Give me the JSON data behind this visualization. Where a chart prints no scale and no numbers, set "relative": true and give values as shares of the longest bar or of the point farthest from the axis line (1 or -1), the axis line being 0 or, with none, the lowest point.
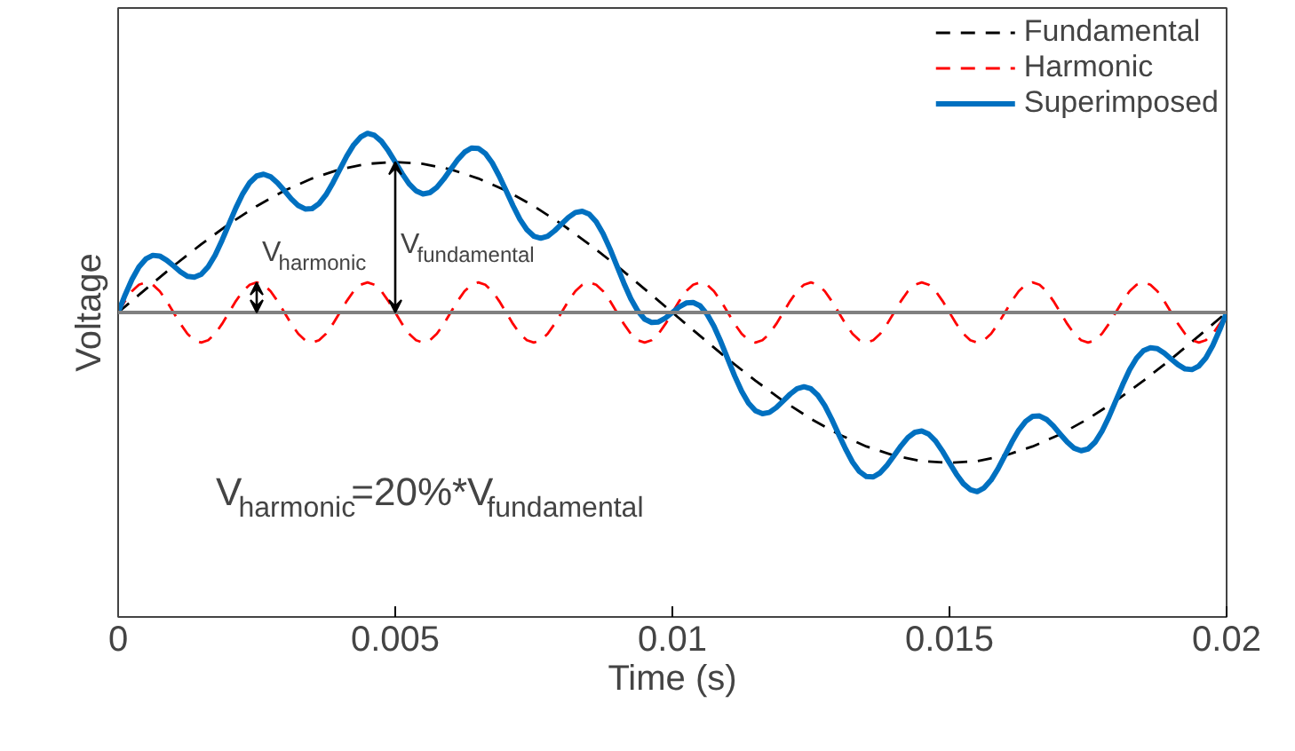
{
  "chart_data": {
    "type": "line",
    "relative": true,
    "xlabel": "Time (s)",
    "ylabel": "Voltage",
    "xlim": [
      0,
      0.02
    ],
    "xticks": [
      0,
      0.005,
      0.01,
      0.015,
      0.02
    ],
    "grid": false,
    "legend": "top right",
    "x": [
      0,
      0.000125,
      0.00025,
      0.000375,
      0.0005,
      0.000625,
      0.00075,
      0.000875,
      0.001,
      0.001125,
      0.00125,
      0.001375,
      0.0015,
      0.001625,
      0.00175,
      0.001875,
      0.002,
      0.002125,
      0.00225,
      0.002375,
      0.0025,
      0.002625,
      0.00275,
      0.002875,
      0.003,
      0.003125,
      0.00325,
      0.003375,
      0.0035,
      0.003625,
      0.00375,
      0.003875,
      0.004,
      0.004125,
      0.00425,
      0.004375,
      0.0045,
      0.004625,
      0.00475,
      0.004875,
      0.005,
      0.005125,
      0.00525,
      0.005375,
      0.0055,
      0.005625,
      0.00575,
      0.005875,
      0.006,
      0.006125,
      0.00625,
      0.006375,
      0.0065,
      0.006625,
      0.00675,
      0.006875,
      0.007,
      0.007125,
      0.00725,
      0.007375,
      0.0075,
      0.007625,
      0.00775,
      0.007875,
      0.008,
      0.008125,
      0.00825,
      0.008375,
      0.0085,
      0.008625,
      0.00875,
      0.008875,
      0.009,
      0.009125,
      0.00925,
      0.009375,
      0.0095,
      0.009625,
      0.00975,
      0.009875,
      0.01,
      0.010125,
      0.01025,
      0.010375,
      0.0105,
      0.010625,
      0.01075,
      0.010875,
      0.011,
      0.011125,
      0.01125,
      0.011375,
      0.0115,
      0.011625,
      0.01175,
      0.011875,
      0.012,
      0.012125,
      0.01225,
      0.012375,
      0.0125,
      0.012625,
      0.01275,
      0.012875,
      0.013,
      0.013125,
      0.01325,
      0.013375,
      0.0135,
      0.013625,
      0.01375,
      0.013875,
      0.014,
      0.014125,
      0.01425,
      0.014375,
      0.0145,
      0.014625,
      0.01475,
      0.014875,
      0.015,
      0.015125,
      0.01525,
      0.015375,
      0.0155,
      0.015625,
      0.01575,
      0.015875,
      0.016,
      0.016125,
      0.01625,
      0.016375,
      0.0165,
      0.016625,
      0.01675,
      0.016875,
      0.017,
      0.017125,
      0.01725,
      0.017375,
      0.0175,
      0.017625,
      0.01775,
      0.017875,
      0.018,
      0.018125,
      0.01825,
      0.018375,
      0.0185,
      0.018625,
      0.01875,
      0.018875,
      0.019,
      0.019125,
      0.01925,
      0.019375,
      0.0195,
      0.019625,
      0.01975,
      0.019875,
      0.02
    ],
    "series": [
      {
        "name": "Fundamental",
        "color": "#000000",
        "line_style": "dashed",
        "x": [
          0,
          0.0005,
          0.001,
          0.0015,
          0.002,
          0.0025,
          0.003,
          0.0035,
          0.004,
          0.0045,
          0.005,
          0.0055,
          0.006,
          0.0065,
          0.007,
          0.0075,
          0.008,
          0.0085,
          0.009,
          0.0095,
          0.01,
          0.0105,
          0.011,
          0.0115,
          0.012,
          0.0125,
          0.013,
          0.0135,
          0.014,
          0.0145,
          0.015,
          0.0155,
          0.016,
          0.0165,
          0.017,
          0.0175,
          0.018,
          0.0185,
          0.019,
          0.0195,
          0.02
        ],
        "values": [
          0,
          0.131,
          0.26,
          0.381,
          0.494,
          0.594,
          0.68,
          0.748,
          0.799,
          0.83,
          0.84,
          0.83,
          0.799,
          0.748,
          0.68,
          0.594,
          0.494,
          0.381,
          0.26,
          0.131,
          0,
          -0.131,
          -0.26,
          -0.381,
          -0.494,
          -0.594,
          -0.68,
          -0.748,
          -0.799,
          -0.83,
          -0.84,
          -0.83,
          -0.799,
          -0.748,
          -0.68,
          -0.594,
          -0.494,
          -0.381,
          -0.26,
          -0.131,
          0
        ]
      },
      {
        "name": "Harmonic",
        "color": "#ff0000",
        "line_style": "dashed",
        "values": [
          0,
          0.064,
          0.119,
          0.155,
          0.168,
          0.155,
          0.119,
          0.064,
          0,
          -0.064,
          -0.119,
          -0.155,
          -0.168,
          -0.155,
          -0.119,
          -0.064,
          0,
          0.064,
          0.119,
          0.155,
          0.168,
          0.155,
          0.119,
          0.064,
          0,
          -0.064,
          -0.119,
          -0.155,
          -0.168,
          -0.155,
          -0.119,
          -0.064,
          0,
          0.064,
          0.119,
          0.155,
          0.168,
          0.155,
          0.119,
          0.064,
          0,
          -0.064,
          -0.119,
          -0.155,
          -0.168,
          -0.155,
          -0.119,
          -0.064,
          0,
          0.064,
          0.119,
          0.155,
          0.168,
          0.155,
          0.119,
          0.064,
          0,
          -0.064,
          -0.119,
          -0.155,
          -0.168,
          -0.155,
          -0.119,
          -0.064,
          0,
          0.064,
          0.119,
          0.155,
          0.168,
          0.155,
          0.119,
          0.064,
          0,
          -0.064,
          -0.119,
          -0.155,
          -0.168,
          -0.155,
          -0.119,
          -0.064,
          0,
          0.064,
          0.119,
          0.155,
          0.168,
          0.155,
          0.119,
          0.064,
          0,
          -0.064,
          -0.119,
          -0.155,
          -0.168,
          -0.155,
          -0.119,
          -0.064,
          0,
          0.064,
          0.119,
          0.155,
          0.168,
          0.155,
          0.119,
          0.064,
          0,
          -0.064,
          -0.119,
          -0.155,
          -0.168,
          -0.155,
          -0.119,
          -0.064,
          0,
          0.064,
          0.119,
          0.155,
          0.168,
          0.155,
          0.119,
          0.064,
          0,
          -0.064,
          -0.119,
          -0.155,
          -0.168,
          -0.155,
          -0.119,
          -0.064,
          0,
          0.064,
          0.119,
          0.155,
          0.168,
          0.155,
          0.119,
          0.064,
          0,
          -0.064,
          -0.119,
          -0.155,
          -0.168,
          -0.155,
          -0.119,
          -0.064,
          0,
          0.064,
          0.119,
          0.155,
          0.168,
          0.155,
          0.119,
          0.064,
          0,
          -0.064,
          -0.119,
          -0.155,
          -0.168,
          -0.155,
          -0.119,
          -0.064,
          0
        ]
      },
      {
        "name": "Superimposed",
        "color": "#0070c0",
        "line_style": "solid",
        "values": [
          0,
          0.097,
          0.185,
          0.254,
          0.299,
          0.319,
          0.315,
          0.292,
          0.26,
          0.227,
          0.202,
          0.197,
          0.213,
          0.255,
          0.32,
          0.403,
          0.494,
          0.584,
          0.664,
          0.725,
          0.762,
          0.772,
          0.758,
          0.724,
          0.68,
          0.634,
          0.597,
          0.578,
          0.58,
          0.608,
          0.657,
          0.724,
          0.799,
          0.873,
          0.936,
          0.979,
          1.0,
          0.989,
          0.956,
          0.903,
          0.84,
          0.775,
          0.718,
          0.679,
          0.662,
          0.669,
          0.698,
          0.745,
          0.799,
          0.852,
          0.895,
          0.918,
          0.916,
          0.888,
          0.835,
          0.762,
          0.68,
          0.596,
          0.52,
          0.462,
          0.426,
          0.415,
          0.426,
          0.456,
          0.494,
          0.531,
          0.558,
          0.565,
          0.549,
          0.507,
          0.44,
          0.355,
          0.26,
          0.164,
          0.077,
          0.009,
          -0.037,
          -0.056,
          -0.053,
          -0.031,
          0,
          0.031,
          0.053,
          0.056,
          0.037,
          -0.009,
          -0.077,
          -0.164,
          -0.26,
          -0.355,
          -0.44,
          -0.507,
          -0.549,
          -0.565,
          -0.558,
          -0.531,
          -0.494,
          -0.456,
          -0.426,
          -0.415,
          -0.426,
          -0.462,
          -0.52,
          -0.596,
          -0.68,
          -0.762,
          -0.835,
          -0.888,
          -0.916,
          -0.918,
          -0.895,
          -0.852,
          -0.799,
          -0.745,
          -0.698,
          -0.669,
          -0.662,
          -0.679,
          -0.718,
          -0.775,
          -0.84,
          -0.903,
          -0.956,
          -0.989,
          -1.0,
          -0.979,
          -0.936,
          -0.873,
          -0.799,
          -0.724,
          -0.657,
          -0.608,
          -0.58,
          -0.578,
          -0.597,
          -0.634,
          -0.68,
          -0.724,
          -0.758,
          -0.772,
          -0.762,
          -0.725,
          -0.664,
          -0.584,
          -0.494,
          -0.403,
          -0.32,
          -0.255,
          -0.213,
          -0.197,
          -0.202,
          -0.227,
          -0.26,
          -0.292,
          -0.315,
          -0.319,
          -0.299,
          -0.254,
          -0.185,
          -0.097,
          0
        ]
      }
    ],
    "annotations": [
      {
        "text": "V$_{harmonic}$",
        "x": 0.0025,
        "y": 0.168
      },
      {
        "text": "V$_{fundamental}$",
        "x": 0.005,
        "y": 0.84
      },
      "V$_{harmonic}$=20%*V$_{fundamental}$"
    ]
  }
}
